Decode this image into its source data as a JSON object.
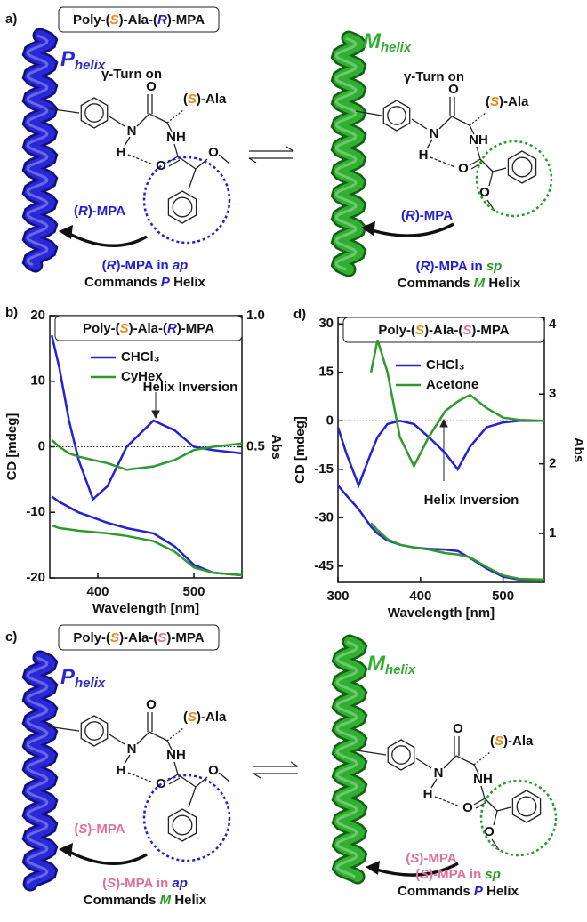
{
  "panel_a": {
    "label": "a)",
    "title": [
      "Poly-(",
      "S",
      ")-Ala-(",
      "R",
      ")-MPA"
    ],
    "left": {
      "helix": [
        "P",
        "helix"
      ],
      "turn": "γ-Turn on",
      "ala": [
        "(",
        "S",
        ")-Ala"
      ],
      "atoms": [
        "O",
        "N",
        "H",
        "NH",
        "O",
        "O"
      ],
      "mpa": [
        "(",
        "R",
        ")-MPA"
      ],
      "caption": [
        [
          "(",
          "R",
          ")-MPA  in ",
          "ap"
        ],
        [
          "Commands ",
          "P",
          " Helix"
        ]
      ]
    },
    "right": {
      "helix": [
        "M",
        "helix"
      ],
      "turn": "γ-Turn on",
      "ala": [
        "(",
        "S",
        ")-Ala"
      ],
      "atoms": [
        "O",
        "N",
        "H",
        "NH",
        "O",
        "O"
      ],
      "mpa": [
        "(",
        "R",
        ")-MPA"
      ],
      "caption": [
        [
          "(",
          "R",
          ")-MPA in ",
          "sp"
        ],
        [
          "Commands ",
          "M",
          " Helix"
        ]
      ]
    }
  },
  "panel_c": {
    "label": "c)",
    "title": [
      "Poly-(",
      "S",
      ")-Ala-(",
      "S",
      ")-MPA"
    ],
    "left": {
      "helix": [
        "P",
        "helix"
      ],
      "ala": [
        "(",
        "S",
        ")-Ala"
      ],
      "atoms": [
        "O",
        "N",
        "H",
        "NH",
        "O",
        "O"
      ],
      "mpa": [
        "(",
        "S",
        ")-MPA"
      ],
      "caption": [
        [
          "(",
          "S",
          ")-MPA in ",
          "ap"
        ],
        [
          "Commands ",
          "M",
          " Helix"
        ]
      ]
    },
    "right": {
      "helix": [
        "M",
        "helix"
      ],
      "ala": [
        "(",
        "S",
        ")-Ala"
      ],
      "atoms": [
        "O",
        "N",
        "H",
        "NH",
        "O",
        "O"
      ],
      "mpa": [
        "(",
        "S",
        ")-MPA"
      ],
      "caption": [
        [
          "(",
          "S",
          ")-MPA in ",
          "sp"
        ],
        [
          "Commands ",
          "P",
          " Helix"
        ]
      ]
    }
  },
  "chart_data": [
    {
      "label": "b)",
      "type": "line",
      "title": [
        "Poly-(",
        "S",
        ")-Ala-(",
        "R",
        ")-MPA"
      ],
      "annotation": "Helix Inversion",
      "xlabel": "Wavelength [nm]",
      "ylabel": "CD [mdeg]",
      "y2label": "Abs",
      "x": [
        352,
        360,
        370,
        380,
        395,
        410,
        430,
        458,
        480,
        500,
        520,
        550
      ],
      "xlim": [
        350,
        550
      ],
      "xticks": [
        400,
        500
      ],
      "ylim": [
        -20,
        20
      ],
      "yticks": [
        -20,
        -10,
        0,
        10,
        20
      ],
      "y2lim": [
        0,
        1
      ],
      "y2ticks": [
        0.5,
        {
          "value": 1,
          "label": "1.0"
        }
      ],
      "series": [
        {
          "name": "CHCl₃",
          "color": "#2222d0",
          "values": [
            17,
            12,
            4,
            -2,
            -8,
            -6,
            0,
            4,
            2.5,
            0,
            -0.5,
            -1
          ]
        },
        {
          "name": "CyHex",
          "color": "#2e9a2e",
          "values": [
            1,
            0,
            -1,
            -1.5,
            -2,
            -2.5,
            -3.5,
            -3,
            -2,
            -0.5,
            0,
            0.5
          ]
        },
        {
          "color": "#2222d0",
          "axis": "y2",
          "values": [
            0.31,
            0.29,
            0.27,
            0.25,
            0.23,
            0.21,
            0.19,
            0.17,
            0.12,
            0.05,
            0.02,
            0.01
          ]
        },
        {
          "color": "#2e9a2e",
          "axis": "y2",
          "values": [
            0.2,
            0.19,
            0.185,
            0.18,
            0.175,
            0.17,
            0.16,
            0.14,
            0.1,
            0.04,
            0.02,
            0.01
          ]
        }
      ]
    },
    {
      "label": "d)",
      "type": "line",
      "title": [
        "Poly-(",
        "S",
        ")-Ala-(",
        "S",
        ")-MPA"
      ],
      "annotation": "Helix Inversion",
      "xlabel": "Wavelength [nm]",
      "ylabel": "CD [mdeg]",
      "y2label": "Abs",
      "x": [
        300,
        310,
        325,
        340,
        348,
        360,
        375,
        392,
        410,
        430,
        445,
        460,
        480,
        500,
        520,
        550
      ],
      "xlim": [
        300,
        550
      ],
      "xticks": [
        300,
        400,
        500
      ],
      "ylim": [
        -50,
        32
      ],
      "yticks": [
        -45,
        -30,
        -15,
        0,
        15,
        30
      ],
      "y2lim": [
        0.3,
        4.1
      ],
      "y2ticks": [
        1,
        2,
        3,
        4
      ],
      "series": [
        {
          "name": "CHCl₃",
          "color": "#2222d0",
          "values": [
            -2,
            -10,
            -20,
            -10,
            -5,
            -1,
            0,
            -1,
            -5,
            -10,
            -15,
            -8,
            -2,
            -0.5,
            0,
            0
          ]
        },
        {
          "name": "Acetone",
          "color": "#2e9a2e",
          "values": [
            null,
            null,
            null,
            15,
            25,
            15,
            -5,
            -14,
            -5,
            3,
            6,
            8,
            4,
            1,
            0.3,
            0
          ]
        },
        {
          "color": "#2222d0",
          "axis": "y2",
          "values": [
            1.69,
            1.55,
            1.35,
            1.1,
            1.0,
            0.9,
            0.84,
            0.8,
            0.78,
            0.77,
            0.75,
            0.65,
            0.5,
            0.38,
            0.34,
            0.33
          ]
        },
        {
          "color": "#2e9a2e",
          "axis": "y2",
          "values": [
            null,
            null,
            null,
            1.15,
            1.05,
            0.92,
            0.84,
            0.8,
            0.77,
            0.72,
            0.7,
            0.66,
            0.52,
            0.4,
            0.35,
            0.34
          ]
        }
      ]
    }
  ]
}
